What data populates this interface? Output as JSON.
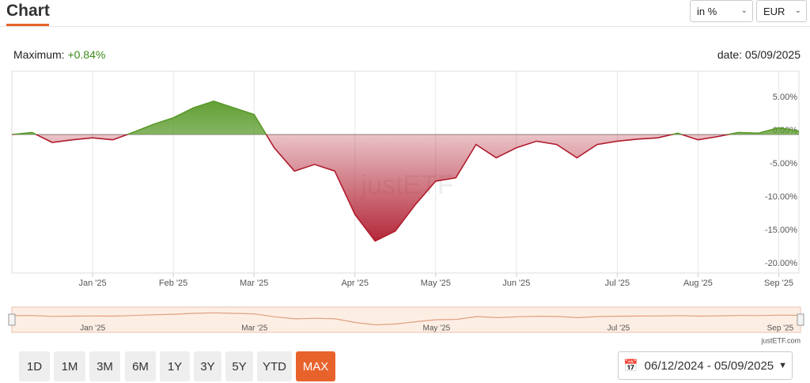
{
  "header": {
    "title": "Chart",
    "unit_select": "in %",
    "currency_select": "EUR"
  },
  "summary": {
    "maximum_label": "Maximum:",
    "maximum_value": "+0.84%",
    "date": "date: 05/09/2025"
  },
  "chart_data": {
    "type": "line",
    "watermark": "justETF",
    "credit": "justETF.com",
    "categories": [
      null,
      null,
      null,
      null,
      "Jan '25",
      null,
      null,
      null,
      "Feb '25",
      null,
      null,
      null,
      "Mar '25",
      null,
      null,
      null,
      null,
      "Apr '25",
      null,
      null,
      null,
      "May '25",
      null,
      null,
      null,
      "Jun '25",
      null,
      null,
      null,
      null,
      "Jul '25",
      null,
      null,
      null,
      "Aug '25",
      null,
      null,
      null,
      "Sep '25",
      null
    ],
    "values": [
      0,
      0.3,
      -1.2,
      -0.8,
      -0.5,
      -0.8,
      0.3,
      1.5,
      2.5,
      4.0,
      5.0,
      4.0,
      3.0,
      -2.0,
      -5.5,
      -4.5,
      -5.5,
      -12,
      -16,
      -14.5,
      -10.5,
      -7,
      -6.5,
      -1.5,
      -3.5,
      -2.0,
      -1.0,
      -1.5,
      -3.5,
      -1.5,
      -1.0,
      -0.7,
      -0.5,
      0.2,
      -0.8,
      -0.3,
      0.3,
      0.2,
      1.0,
      0.5
    ],
    "ylim": [
      -20.8,
      9.5
    ],
    "yticks": [
      {
        "value": 5,
        "label": "5.00%"
      },
      {
        "value": 0,
        "label": "0.00%"
      },
      {
        "value": -5,
        "label": "-5.00%"
      },
      {
        "value": -10,
        "label": "-10.00%"
      },
      {
        "value": -15,
        "label": "-15.00%"
      },
      {
        "value": -20,
        "label": "-20.00%"
      }
    ],
    "up_color": "#5a9a2a",
    "down_color": "#b01c2e",
    "navigator_color": "#e0a080"
  },
  "buttons": [
    "1D",
    "1M",
    "3M",
    "6M",
    "1Y",
    "3Y",
    "5Y",
    "YTD",
    "MAX"
  ],
  "active_button": 8,
  "date_range": "06/12/2024 - 05/09/2025"
}
